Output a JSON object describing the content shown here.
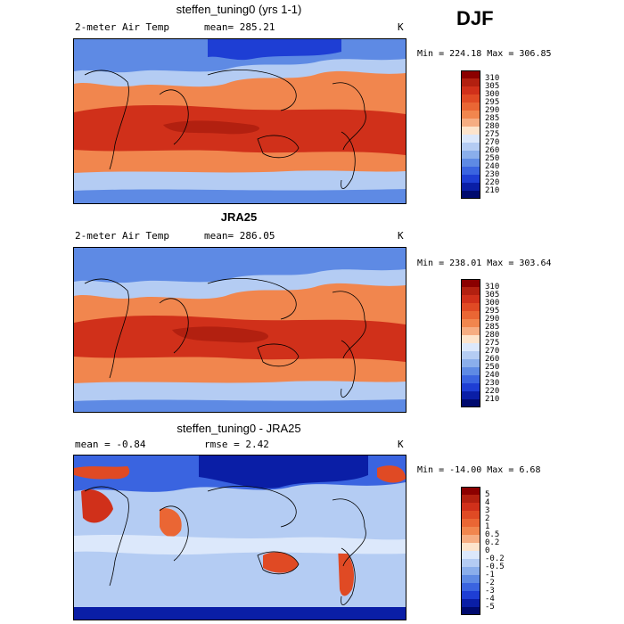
{
  "season": "DJF",
  "panels": [
    {
      "title": "steffen_tuning0 (yrs 1-1)",
      "variable": "2-meter Air Temp",
      "stat1": "mean= 285.21",
      "stat2": "",
      "units": "K",
      "minmax": "Min = 224.18 Max = 306.85",
      "colorbar": {
        "labels": [
          "310",
          "305",
          "300",
          "295",
          "290",
          "285",
          "280",
          "275",
          "270",
          "260",
          "250",
          "240",
          "230",
          "220",
          "210"
        ],
        "colors": [
          "#8b0000",
          "#b22010",
          "#d0301a",
          "#e04a24",
          "#ea6634",
          "#f1864e",
          "#f6ad82",
          "#fde4cc",
          "#dce8fb",
          "#b4ccf3",
          "#8aaeeb",
          "#5e8ae4",
          "#3a64e0",
          "#1e3ed4",
          "#0a1ea6",
          "#000a6e"
        ]
      }
    },
    {
      "title": "JRA25",
      "variable": "2-meter Air Temp",
      "stat1": "mean= 286.05",
      "stat2": "",
      "units": "K",
      "minmax": "Min = 238.01 Max = 303.64",
      "colorbar": {
        "labels": [
          "310",
          "305",
          "300",
          "295",
          "290",
          "285",
          "280",
          "275",
          "270",
          "260",
          "250",
          "240",
          "230",
          "220",
          "210"
        ],
        "colors": [
          "#8b0000",
          "#b22010",
          "#d0301a",
          "#e04a24",
          "#ea6634",
          "#f1864e",
          "#f6ad82",
          "#fde4cc",
          "#dce8fb",
          "#b4ccf3",
          "#8aaeeb",
          "#5e8ae4",
          "#3a64e0",
          "#1e3ed4",
          "#0a1ea6",
          "#000a6e"
        ]
      }
    },
    {
      "title": "steffen_tuning0 - JRA25",
      "variable": "",
      "stat1": "mean =   -0.84",
      "stat2": "rmse =    2.42",
      "units": "K",
      "minmax": "Min = -14.00 Max =    6.68",
      "colorbar": {
        "labels": [
          "5",
          "4",
          "3",
          "2",
          "1",
          "0.5",
          "0.2",
          "0",
          "-0.2",
          "-0.5",
          "-1",
          "-2",
          "-3",
          "-4",
          "-5"
        ],
        "colors": [
          "#8b0000",
          "#b22010",
          "#d0301a",
          "#e04a24",
          "#ea6634",
          "#f1864e",
          "#f6ad82",
          "#fde4cc",
          "#dce8fb",
          "#b4ccf3",
          "#8aaeeb",
          "#5e8ae4",
          "#3a64e0",
          "#1e3ed4",
          "#0a1ea6",
          "#000a6e"
        ]
      }
    }
  ]
}
